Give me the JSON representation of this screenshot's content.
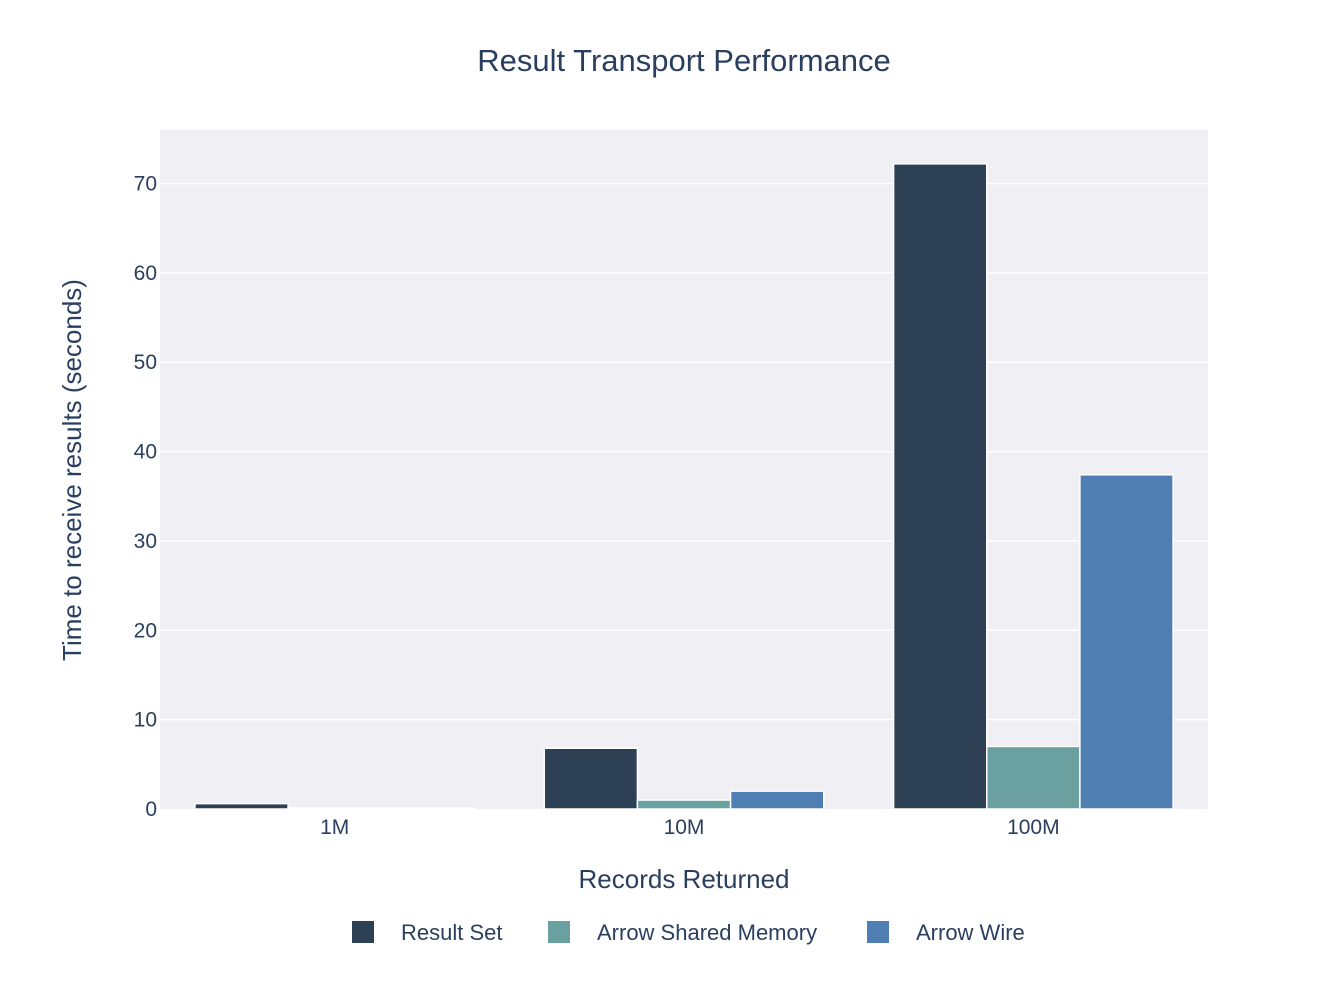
{
  "chart_data": {
    "type": "bar",
    "title": "Result Transport Performance",
    "xlabel": "Records Returned",
    "ylabel": "Time to receive results (seconds)",
    "categories": [
      "1M",
      "10M",
      "100M"
    ],
    "series": [
      {
        "name": "Result Set",
        "color": "#2e4053",
        "values": [
          0.6,
          6.8,
          72.2
        ]
      },
      {
        "name": "Arrow Shared Memory",
        "color": "#6aa1a0",
        "values": [
          0.05,
          1.0,
          7.0
        ]
      },
      {
        "name": "Arrow Wire",
        "color": "#4f7eb2",
        "values": [
          0.05,
          2.0,
          37.4
        ]
      }
    ],
    "ylim": [
      0,
      76
    ],
    "yticks": [
      0,
      10,
      20,
      30,
      40,
      50,
      60,
      70
    ],
    "grid": true,
    "plot_background": "#f0eff3",
    "legend_position": "bottom-center"
  }
}
